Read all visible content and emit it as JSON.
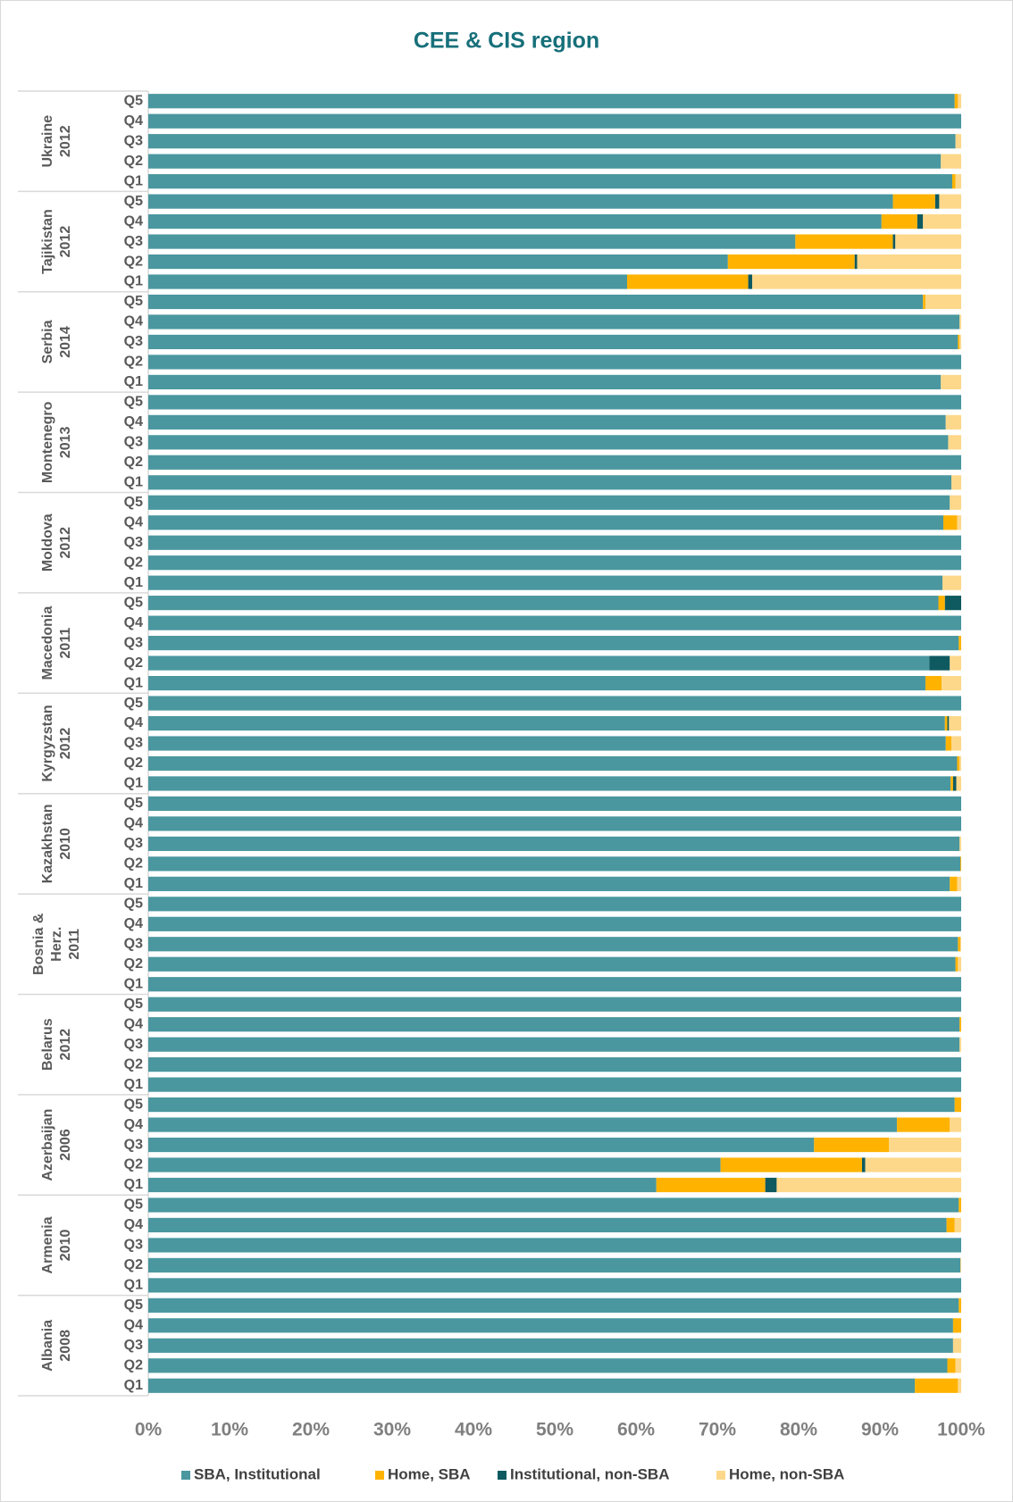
{
  "chart_data": {
    "type": "stacked-bar-horizontal",
    "title": "CEE & CIS region",
    "groups": [
      {
        "label": [
          "Ukraine",
          "2012"
        ]
      },
      {
        "label": [
          "Tajikistan",
          "2012"
        ]
      },
      {
        "label": [
          "Serbia",
          "2014"
        ]
      },
      {
        "label": [
          "Montenegro",
          "2013"
        ]
      },
      {
        "label": [
          "Moldova",
          "2012"
        ]
      },
      {
        "label": [
          "Macedonia",
          "2011"
        ]
      },
      {
        "label": [
          "Kyrgyzstan",
          "2012"
        ]
      },
      {
        "label": [
          "Kazakhstan",
          "2010"
        ]
      },
      {
        "label": [
          "Bosnia &",
          "Herz.",
          "2011"
        ]
      },
      {
        "label": [
          "Belarus",
          "2012"
        ]
      },
      {
        "label": [
          "Azerbaijan",
          "2006"
        ]
      },
      {
        "label": [
          "Armenia",
          "2010"
        ]
      },
      {
        "label": [
          "Albania",
          "2008"
        ]
      }
    ],
    "categories": [
      "Q5",
      "Q4",
      "Q3",
      "Q2",
      "Q1",
      "Q5",
      "Q4",
      "Q3",
      "Q2",
      "Q1",
      "Q5",
      "Q4",
      "Q3",
      "Q2",
      "Q1",
      "Q5",
      "Q4",
      "Q3",
      "Q2",
      "Q1",
      "Q5",
      "Q4",
      "Q3",
      "Q2",
      "Q1",
      "Q5",
      "Q4",
      "Q3",
      "Q2",
      "Q1",
      "Q5",
      "Q4",
      "Q3",
      "Q2",
      "Q1",
      "Q5",
      "Q4",
      "Q3",
      "Q2",
      "Q1",
      "Q5",
      "Q4",
      "Q3",
      "Q2",
      "Q1",
      "Q5",
      "Q4",
      "Q3",
      "Q2",
      "Q1",
      "Q5",
      "Q4",
      "Q3",
      "Q2",
      "Q1",
      "Q5",
      "Q4",
      "Q3",
      "Q2",
      "Q1",
      "Q5",
      "Q4",
      "Q3",
      "Q2",
      "Q1"
    ],
    "series": [
      {
        "name": "SBA, Institutional",
        "color": "#4a979f",
        "values": [
          99.2,
          100,
          99.3,
          97.5,
          98.9,
          91.6,
          90.2,
          79.6,
          71.3,
          58.9,
          95.3,
          99.8,
          99.6,
          100,
          97.5,
          100,
          98.1,
          98.4,
          100,
          98.8,
          98.6,
          97.8,
          100,
          100,
          97.7,
          97.2,
          100,
          99.7,
          96.1,
          95.6,
          100,
          98.0,
          98.1,
          99.5,
          98.7,
          100,
          100,
          99.8,
          99.9,
          98.6,
          100,
          100,
          99.6,
          99.3,
          100,
          100,
          99.8,
          99.8,
          100,
          100,
          99.2,
          92.1,
          81.9,
          70.4,
          62.5,
          99.7,
          98.2,
          100,
          99.9,
          100,
          99.7,
          99.0,
          99.0,
          98.3,
          94.3
        ]
      },
      {
        "name": "Home, SBA",
        "color": "#ffb300",
        "values": [
          0.4,
          0,
          0,
          0,
          0.4,
          5.2,
          4.4,
          12.0,
          15.6,
          14.9,
          0.3,
          0,
          0.2,
          0,
          0,
          0,
          0,
          0,
          0,
          0,
          0,
          1.7,
          0,
          0,
          0,
          0.8,
          0,
          0.3,
          0,
          2.0,
          0,
          0.3,
          0.7,
          0.3,
          0.3,
          0,
          0,
          0,
          0.1,
          0.9,
          0,
          0,
          0.3,
          0.3,
          0,
          0,
          0.2,
          0,
          0,
          0,
          0.8,
          6.5,
          9.2,
          17.4,
          13.4,
          0.3,
          1.0,
          0,
          0,
          0,
          0.3,
          1.0,
          0,
          1.0,
          5.3
        ]
      },
      {
        "name": "Institutional, non-SBA",
        "color": "#0f5a60",
        "values": [
          0,
          0,
          0,
          0,
          0,
          0.5,
          0.7,
          0.3,
          0.3,
          0.5,
          0,
          0,
          0,
          0,
          0,
          0,
          0,
          0,
          0,
          0,
          0,
          0,
          0,
          0,
          0,
          2.0,
          0,
          0,
          2.5,
          0,
          0,
          0.2,
          0,
          0,
          0.4,
          0,
          0,
          0,
          0,
          0,
          0,
          0,
          0,
          0,
          0,
          0,
          0,
          0,
          0,
          0,
          0,
          0,
          0,
          0.4,
          1.4,
          0,
          0,
          0,
          0,
          0,
          0,
          0,
          0,
          0,
          0
        ]
      },
      {
        "name": "Home, non-SBA",
        "color": "#fdd88a",
        "values": [
          0.4,
          0,
          0.7,
          2.5,
          0.7,
          2.7,
          4.7,
          8.1,
          12.8,
          25.7,
          4.4,
          0.2,
          0.2,
          0,
          2.5,
          0,
          1.9,
          1.6,
          0,
          1.2,
          1.4,
          0.5,
          0,
          0,
          2.3,
          0,
          0,
          0,
          1.4,
          2.4,
          0,
          1.5,
          1.2,
          0.2,
          0.6,
          0,
          0,
          0.2,
          0,
          0.5,
          0,
          0,
          0.1,
          0.4,
          0,
          0,
          0,
          0.2,
          0,
          0,
          0,
          1.4,
          8.9,
          11.8,
          22.7,
          0,
          0.8,
          0,
          0.1,
          0,
          0,
          0,
          1.0,
          0.7,
          0.4
        ]
      }
    ],
    "xlim": [
      0,
      100
    ],
    "xticks": [
      {
        "value": 0,
        "label": "0%"
      },
      {
        "value": 10,
        "label": "10%"
      },
      {
        "value": 20,
        "label": "20%"
      },
      {
        "value": 30,
        "label": "30%"
      },
      {
        "value": 40,
        "label": "40%"
      },
      {
        "value": 50,
        "label": "50%"
      },
      {
        "value": 60,
        "label": "60%"
      },
      {
        "value": 70,
        "label": "70%"
      },
      {
        "value": 80,
        "label": "80%"
      },
      {
        "value": 90,
        "label": "90%"
      },
      {
        "value": 100,
        "label": "100%"
      }
    ],
    "legend": "bottom"
  }
}
